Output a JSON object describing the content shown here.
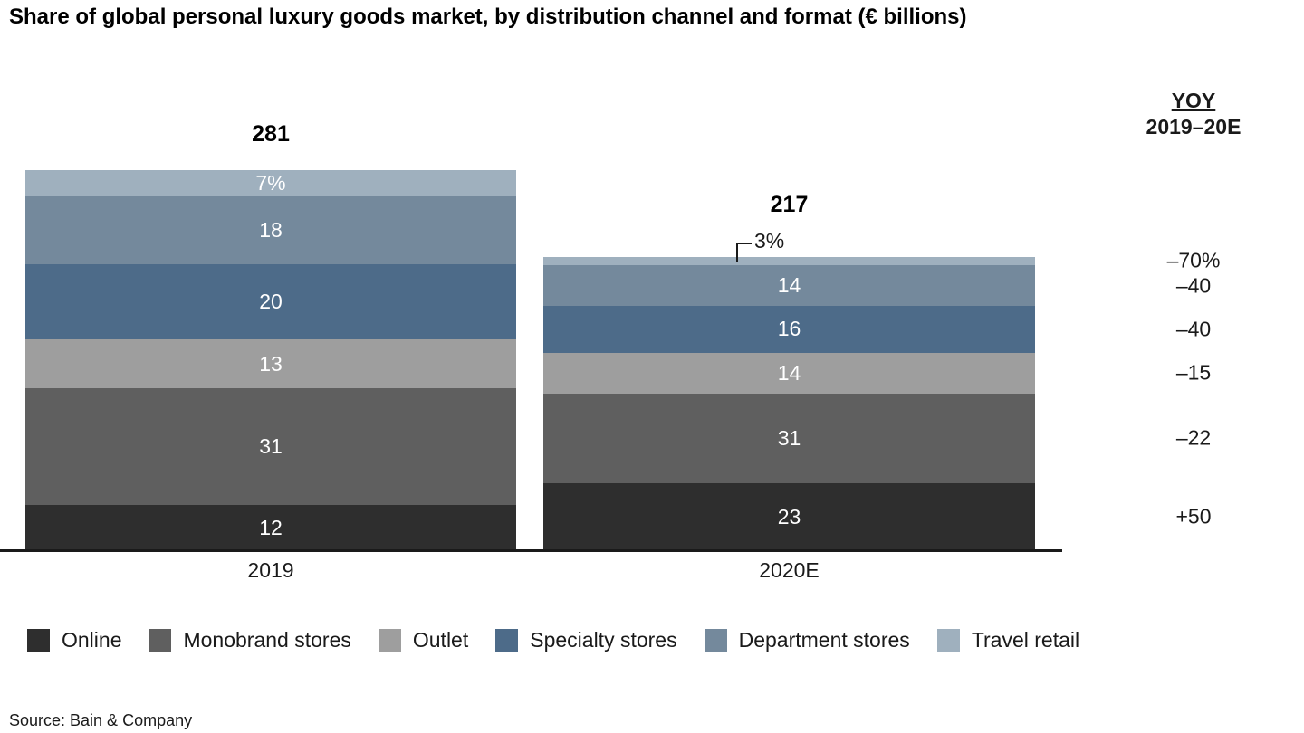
{
  "title": "Share of global personal luxury goods market, by distribution channel and format (€ billions)",
  "source": "Source: Bain & Company",
  "yoy_column": {
    "header_line1": "YOY",
    "header_line2": "2019–20E"
  },
  "chart_data": {
    "type": "bar",
    "stacked": true,
    "title": "Share of global personal luxury goods market, by distribution channel and format (€ billions)",
    "categories": [
      "2019",
      "2020E"
    ],
    "totals": [
      281,
      217
    ],
    "unit_note": "segment values shown are percent share of each column total; column heights scaled to € billions totals",
    "series": [
      {
        "name": "Online",
        "color": "#2e2e2e",
        "values": [
          12,
          23
        ],
        "labels": [
          "12",
          "23"
        ],
        "yoy": "+50"
      },
      {
        "name": "Monobrand stores",
        "color": "#5f5f5f",
        "values": [
          31,
          31
        ],
        "labels": [
          "31",
          "31"
        ],
        "yoy": "–22"
      },
      {
        "name": "Outlet",
        "color": "#9e9e9e",
        "values": [
          13,
          14
        ],
        "labels": [
          "13",
          "14"
        ],
        "yoy": "–15"
      },
      {
        "name": "Specialty stores",
        "color": "#4d6b89",
        "values": [
          20,
          16
        ],
        "labels": [
          "20",
          "16"
        ],
        "yoy": "–40"
      },
      {
        "name": "Department stores",
        "color": "#74899c",
        "values": [
          18,
          14
        ],
        "labels": [
          "18",
          "14"
        ],
        "yoy": "–40"
      },
      {
        "name": "Travel retail",
        "color": "#9fb0be",
        "values": [
          7,
          3
        ],
        "labels": [
          "7%",
          "3%"
        ],
        "label_outside": [
          false,
          true
        ],
        "yoy": "–70%"
      }
    ],
    "legend": [
      "Online",
      "Monobrand stores",
      "Outlet",
      "Specialty stores",
      "Department stores",
      "Travel retail"
    ],
    "legend_position": "bottom",
    "grid": false
  }
}
